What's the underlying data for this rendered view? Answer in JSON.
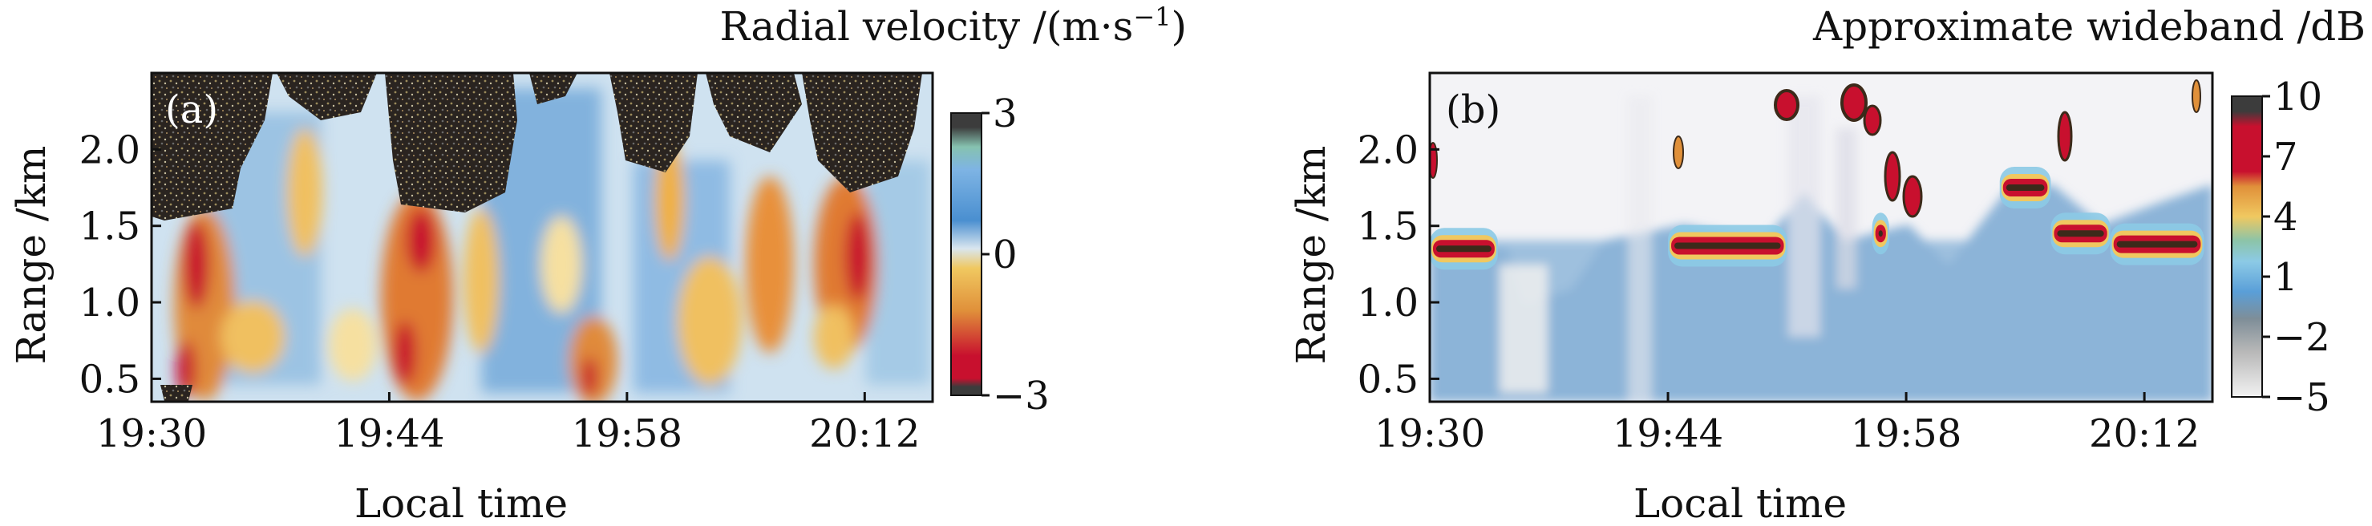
{
  "chart_data": [
    {
      "type": "heatmap",
      "panel_label": "(a)",
      "colorbar_title": "Radial velocity /(m·s",
      "colorbar_title_sup": "−1",
      "colorbar_title_close": ")",
      "xlabel": "Local time",
      "ylabel": "Range /km",
      "x_ticks": [
        {
          "label": "19:30",
          "minutes": 0
        },
        {
          "label": "19:44",
          "minutes": 14
        },
        {
          "label": "19:58",
          "minutes": 28
        },
        {
          "label": "20:12",
          "minutes": 42
        }
      ],
      "xlim_minutes": [
        0,
        46
      ],
      "y_ticks": [
        {
          "label": "0.5",
          "value": 0.5
        },
        {
          "label": "1.0",
          "value": 1.0
        },
        {
          "label": "1.5",
          "value": 1.5
        },
        {
          "label": "2.0",
          "value": 2.0
        }
      ],
      "ylim": [
        0.35,
        2.5
      ],
      "colorbar_ticks": [
        {
          "label": "3",
          "value": 3
        },
        {
          "label": "0",
          "value": 0
        },
        {
          "label": "−3",
          "value": -3
        }
      ],
      "colorbar_range": [
        -3,
        3
      ],
      "colors": {
        "positive": "#4a8fd0",
        "zero": "#f0c050",
        "negative": "#c8102e",
        "noise": "#2a2420"
      }
    },
    {
      "type": "heatmap",
      "panel_label": "(b)",
      "colorbar_title": "Approximate wideband /dB",
      "xlabel": "Local time",
      "ylabel": "Range /km",
      "x_ticks": [
        {
          "label": "19:30",
          "minutes": 0
        },
        {
          "label": "19:44",
          "minutes": 14
        },
        {
          "label": "19:58",
          "minutes": 28
        },
        {
          "label": "20:12",
          "minutes": 42
        }
      ],
      "xlim_minutes": [
        0,
        46
      ],
      "y_ticks": [
        {
          "label": "0.5",
          "value": 0.5
        },
        {
          "label": "1.0",
          "value": 1.0
        },
        {
          "label": "1.5",
          "value": 1.5
        },
        {
          "label": "2.0",
          "value": 2.0
        }
      ],
      "ylim": [
        0.35,
        2.5
      ],
      "colorbar_ticks": [
        {
          "label": "10",
          "value": 10
        },
        {
          "label": "7",
          "value": 7
        },
        {
          "label": "4",
          "value": 4
        },
        {
          "label": "1",
          "value": 1
        },
        {
          "label": "−2",
          "value": -2
        },
        {
          "label": "−5",
          "value": -5
        }
      ],
      "colorbar_range": [
        -5,
        10
      ],
      "cloud_base_km": [
        {
          "start_min": 0.0,
          "end_min": 4.0,
          "range_km": 1.35
        },
        {
          "start_min": 14.0,
          "end_min": 21.0,
          "range_km": 1.37
        },
        {
          "start_min": 26.0,
          "end_min": 27.0,
          "range_km": 1.45
        },
        {
          "start_min": 33.5,
          "end_min": 36.5,
          "range_km": 1.75
        },
        {
          "start_min": 36.5,
          "end_min": 40.0,
          "range_km": 1.45
        },
        {
          "start_min": 40.0,
          "end_min": 45.5,
          "range_km": 1.38
        }
      ]
    }
  ]
}
